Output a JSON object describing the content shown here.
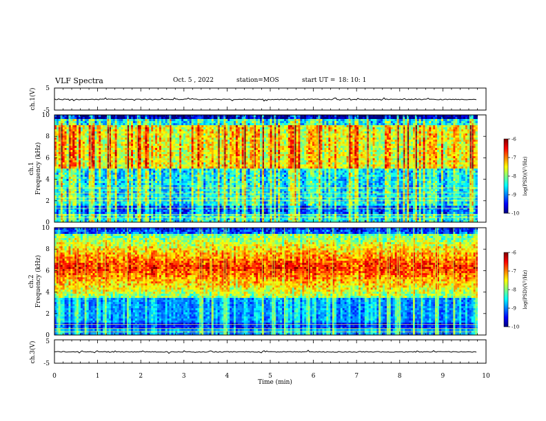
{
  "header": {
    "title": "VLF Spectra",
    "date": "Oct. 5 , 2022",
    "station": "station=MOS",
    "start_label": "start  UT  =",
    "start_time": "18: 10: 1"
  },
  "colors": {
    "jet_stops": [
      "#00007f",
      "#0000ff",
      "#007fff",
      "#00ffff",
      "#7fff7f",
      "#ffff00",
      "#ff7f00",
      "#ff0000",
      "#7f0000"
    ],
    "trace": "#000000",
    "background": "#ffffff"
  },
  "chart_data": [
    {
      "type": "line",
      "panel": "ch1-waveform",
      "ylabel": "ch.1(V)",
      "ylim": [
        -5,
        5
      ],
      "yticks": [
        "5",
        "-5"
      ],
      "xlim": [
        0,
        10
      ],
      "trace_level": 0
    },
    {
      "type": "heatmap",
      "panel": "ch1-spectrogram",
      "ylabel_line1": "ch.1",
      "ylabel_line2": "Frequency (kHz)",
      "ylim": [
        0,
        10
      ],
      "yticks": [
        "0",
        "2",
        "4",
        "6",
        "8",
        "10"
      ],
      "xlim": [
        0,
        10
      ],
      "data_end_min": 9.8,
      "colorbar": {
        "label": "log(PSD)(V²/Hz)",
        "range": [
          -10,
          -6
        ],
        "ticks": [
          "-6",
          "-7",
          "-8",
          "-9",
          "-10"
        ]
      },
      "band_center_khz": 6.5,
      "tone_lines_khz": [
        0.4,
        0.7,
        1.3,
        2.0,
        2.3,
        2.7,
        3.2
      ],
      "hot_band_khz": [
        5.0,
        9.0
      ]
    },
    {
      "type": "heatmap",
      "panel": "ch2-spectrogram",
      "ylabel_line1": "ch.2",
      "ylabel_line2": "Frequency (kHz)",
      "ylim": [
        0,
        10
      ],
      "yticks": [
        "0",
        "2",
        "4",
        "6",
        "8",
        "10"
      ],
      "xlim": [
        0,
        10
      ],
      "data_end_min": 9.8,
      "colorbar": {
        "label": "log(PSD)(V²/Hz)",
        "range": [
          -10,
          -6
        ],
        "ticks": [
          "-6",
          "-7",
          "-8",
          "-9",
          "-10"
        ]
      },
      "band_center_khz": 6.3,
      "tone_lines_khz": [
        0.3,
        0.6,
        1.0
      ],
      "hot_band_khz": [
        4.5,
        8.0
      ]
    },
    {
      "type": "line",
      "panel": "ch3-waveform",
      "ylabel": "ch.3(V)",
      "ylim": [
        -5,
        5
      ],
      "yticks": [
        "5",
        "-5"
      ],
      "xlim": [
        0,
        10
      ],
      "trace_level": 0
    }
  ],
  "xaxis": {
    "label": "Time  (min)",
    "ticks": [
      "0",
      "1",
      "2",
      "3",
      "4",
      "5",
      "6",
      "7",
      "8",
      "9",
      "10"
    ]
  }
}
